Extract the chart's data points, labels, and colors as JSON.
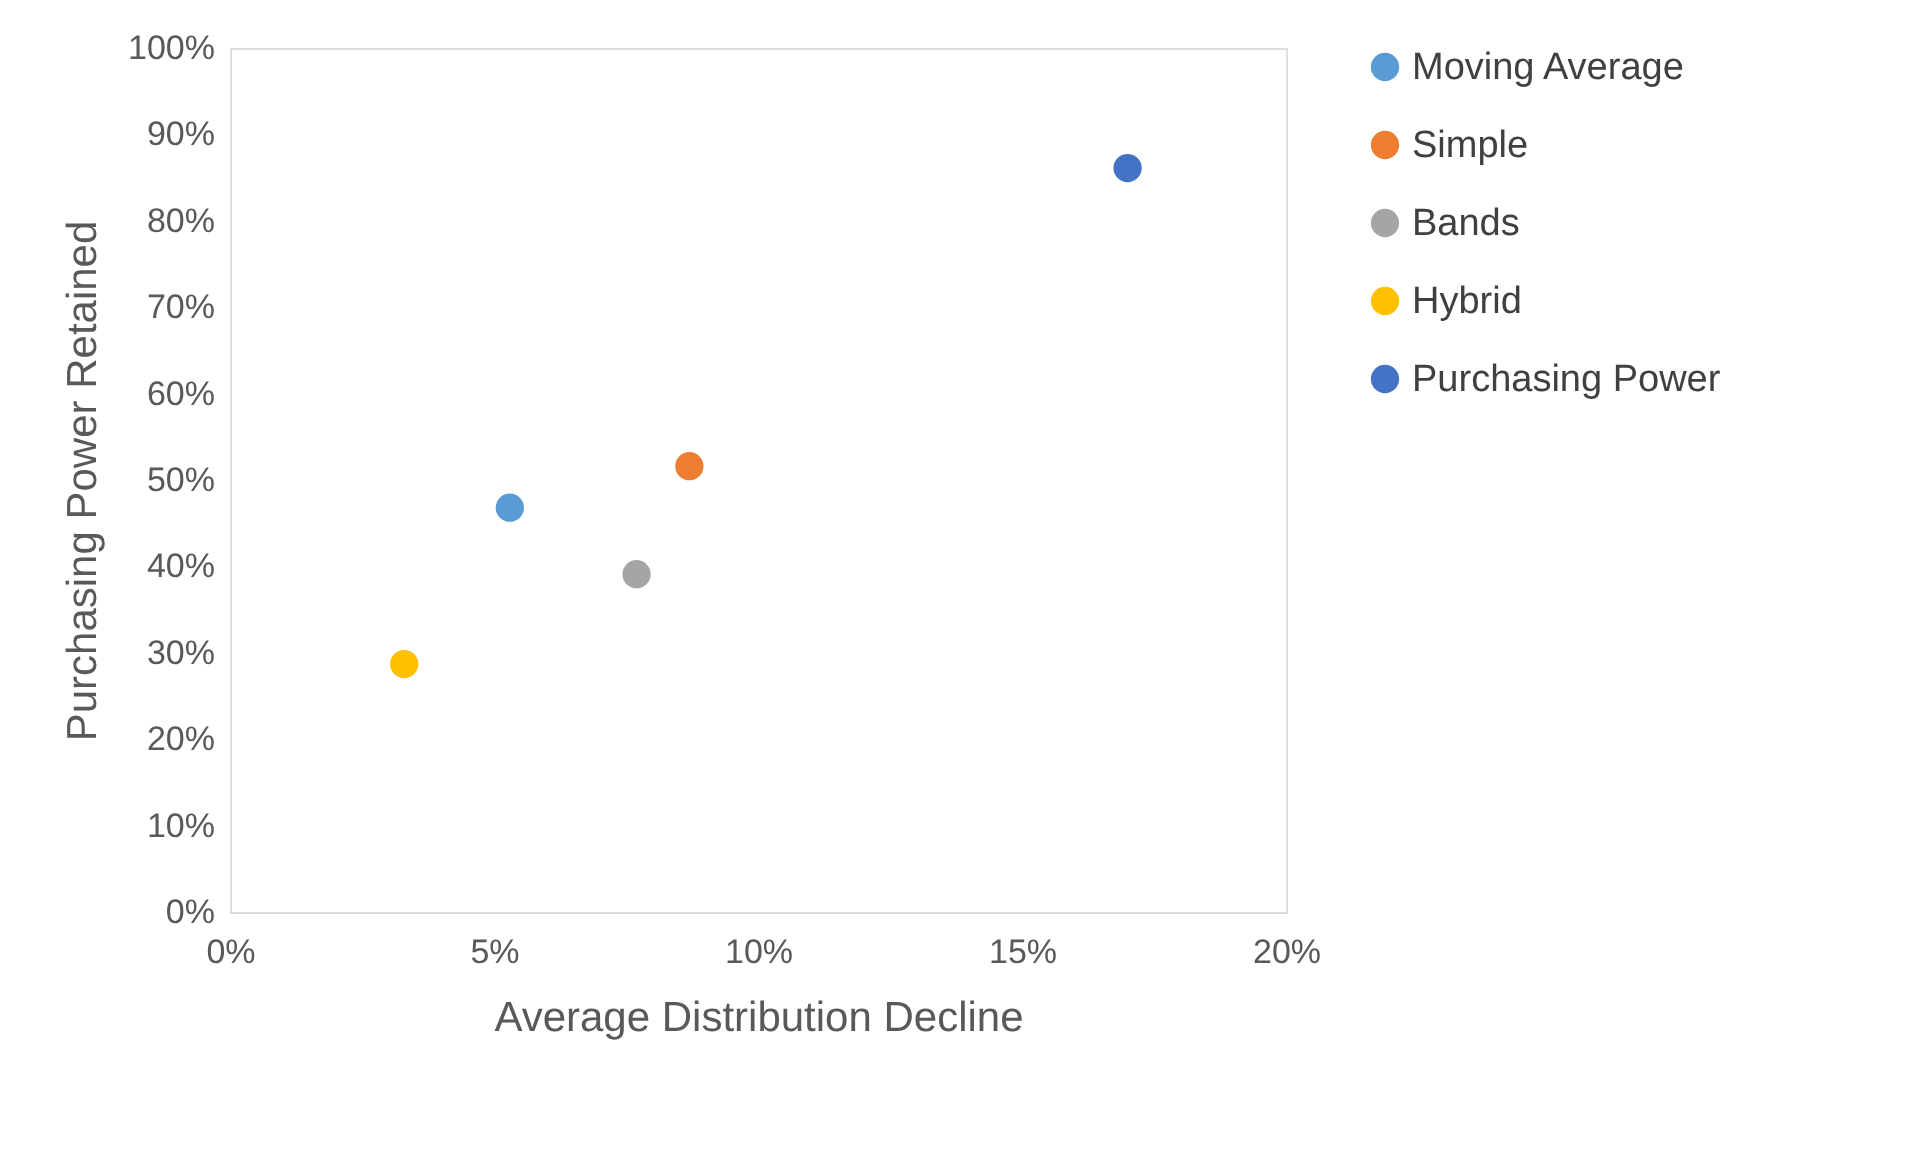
{
  "chart_data": {
    "type": "scatter",
    "xlabel": "Average Distribution Decline",
    "ylabel": "Purchasing Power Retained",
    "series": [
      {
        "name": "Moving Average",
        "color": "#5b9bd5",
        "x": [
          0.053
        ],
        "values": [
          0.468
        ]
      },
      {
        "name": "Simple",
        "color": "#ed7d31",
        "x": [
          0.087
        ],
        "values": [
          0.516
        ]
      },
      {
        "name": "Bands",
        "color": "#a5a5a5",
        "x": [
          0.077
        ],
        "values": [
          0.391
        ]
      },
      {
        "name": "Hybrid",
        "color": "#ffc000",
        "x": [
          0.033
        ],
        "values": [
          0.287
        ]
      },
      {
        "name": "Purchasing Power",
        "color": "#4472c4",
        "x": [
          0.17
        ],
        "values": [
          0.861
        ]
      }
    ],
    "xlim": [
      0,
      0.2
    ],
    "xticks": [
      {
        "value": 0,
        "label": "0%"
      },
      {
        "value": 0.05,
        "label": "5%"
      },
      {
        "value": 0.1,
        "label": "10%"
      },
      {
        "value": 0.15,
        "label": "15%"
      },
      {
        "value": 0.2,
        "label": "20%"
      }
    ],
    "ylim": [
      0,
      1
    ],
    "yticks": [
      {
        "value": 0,
        "label": "0%"
      },
      {
        "value": 0.1,
        "label": "10%"
      },
      {
        "value": 0.2,
        "label": "20%"
      },
      {
        "value": 0.3,
        "label": "30%"
      },
      {
        "value": 0.4,
        "label": "40%"
      },
      {
        "value": 0.5,
        "label": "50%"
      },
      {
        "value": 0.6,
        "label": "60%"
      },
      {
        "value": 0.7,
        "label": "70%"
      },
      {
        "value": 0.8,
        "label": "80%"
      },
      {
        "value": 0.9,
        "label": "90%"
      },
      {
        "value": 1,
        "label": "100%"
      }
    ],
    "grid": false,
    "legend": "right",
    "marker": "circle"
  }
}
